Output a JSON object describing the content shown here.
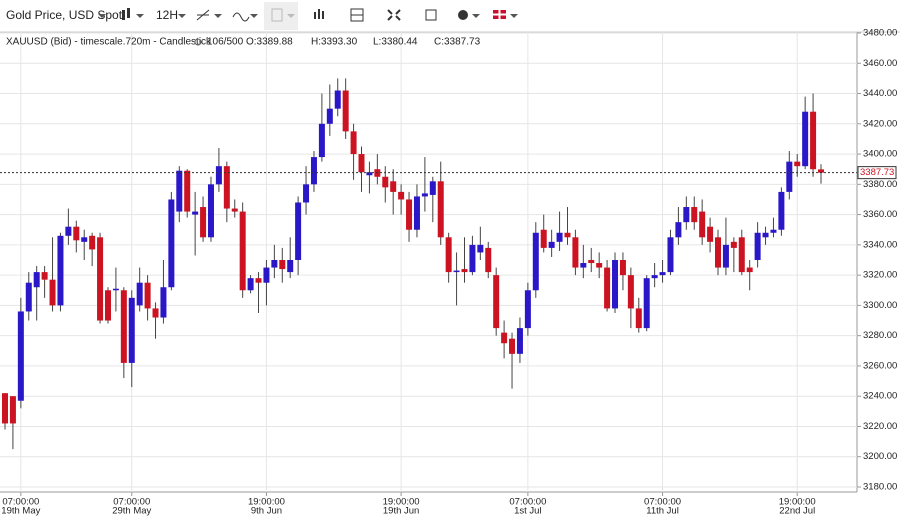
{
  "toolbar": {
    "instrument": "Gold Price, USD Spot",
    "interval": "12H"
  },
  "chart_data": {
    "type": "candlestick",
    "header": {
      "symbol": "XAUUSD (Bid) - timescale.720m - Candlestick",
      "count": "106/500",
      "open": "O:3389.88",
      "high": "H:3393.30",
      "low": "L:3380.44",
      "close": "C:3387.73"
    },
    "up_color": "#2a17c8",
    "down_color": "#cc1322",
    "categories": [
      null,
      null,
      {
        "time": "07:00:00",
        "date": "19th May"
      },
      null,
      null,
      null,
      null,
      null,
      null,
      null,
      null,
      null,
      null,
      null,
      null,
      null,
      {
        "time": "07:00:00",
        "date": "29th May"
      },
      null,
      null,
      null,
      null,
      null,
      null,
      null,
      null,
      null,
      null,
      null,
      null,
      null,
      null,
      null,
      null,
      {
        "time": "19:00:00",
        "date": "9th Jun"
      },
      null,
      null,
      null,
      null,
      null,
      null,
      null,
      null,
      null,
      null,
      null,
      null,
      null,
      null,
      null,
      null,
      {
        "time": "19:00:00",
        "date": "19th Jun"
      },
      null,
      null,
      null,
      null,
      null,
      null,
      null,
      null,
      null,
      null,
      null,
      null,
      null,
      null,
      null,
      {
        "time": "07:00:00",
        "date": "1st Jul"
      },
      null,
      null,
      null,
      null,
      null,
      null,
      null,
      null,
      null,
      null,
      null,
      null,
      null,
      null,
      null,
      null,
      {
        "time": "07:00:00",
        "date": "11th Jul"
      },
      null,
      null,
      null,
      null,
      null,
      null,
      null,
      null,
      null,
      null,
      null,
      null,
      null,
      null,
      null,
      null,
      {
        "time": "19:00:00",
        "date": "22nd Jul"
      },
      null,
      null,
      null
    ],
    "open": [
      3242,
      3240,
      3237,
      3296,
      3312,
      3322,
      3317,
      3300,
      3346,
      3352,
      3342,
      3346,
      3345,
      3310,
      3310,
      3310,
      3262,
      3300,
      3315,
      3298,
      3292,
      3312,
      3362,
      3389,
      3360,
      3365,
      3345,
      3380,
      3392,
      3364,
      3362,
      3310,
      3318,
      3315,
      3325,
      3330,
      3322,
      3330,
      3368,
      3380,
      3398,
      3420,
      3430,
      3442,
      3415,
      3400,
      3386,
      3390,
      3385,
      3382,
      3375,
      3370,
      3350,
      3372,
      3373,
      3382,
      3345,
      3322,
      3324,
      3322,
      3335,
      3338,
      3320,
      3282,
      3278,
      3268,
      3285,
      3310,
      3350,
      3338,
      3342,
      3348,
      3345,
      3325,
      3330,
      3328,
      3325,
      3298,
      3330,
      3320,
      3298,
      3285,
      3318,
      3320,
      3322,
      3345,
      3355,
      3365,
      3362,
      3352,
      3345,
      3325,
      3342,
      3345,
      3325,
      3330,
      3345,
      3348,
      3350,
      3375,
      3395,
      3392,
      3428,
      3389.88
    ],
    "high": [
      3242,
      3240,
      3305,
      3322,
      3326,
      3326,
      3345,
      3348,
      3364,
      3356,
      3350,
      3348,
      3348,
      3312,
      3325,
      3312,
      3310,
      3325,
      3320,
      3302,
      3330,
      3375,
      3392,
      3390,
      3375,
      3372,
      3385,
      3404,
      3395,
      3370,
      3368,
      3320,
      3322,
      3330,
      3340,
      3338,
      3345,
      3372,
      3392,
      3402,
      3440,
      3446,
      3450,
      3450,
      3420,
      3405,
      3395,
      3400,
      3392,
      3390,
      3380,
      3375,
      3380,
      3398,
      3385,
      3395,
      3348,
      3335,
      3345,
      3346,
      3352,
      3342,
      3325,
      3290,
      3282,
      3292,
      3315,
      3355,
      3360,
      3350,
      3362,
      3365,
      3350,
      3340,
      3338,
      3335,
      3330,
      3335,
      3335,
      3325,
      3305,
      3320,
      3328,
      3330,
      3350,
      3365,
      3372,
      3372,
      3370,
      3358,
      3350,
      3358,
      3345,
      3350,
      3330,
      3355,
      3352,
      3358,
      3378,
      3402,
      3400,
      3438,
      3440,
      3393.3
    ],
    "low": [
      3218,
      3205,
      3232,
      3290,
      3290,
      3305,
      3296,
      3296,
      3340,
      3335,
      3330,
      3326,
      3288,
      3288,
      3296,
      3252,
      3246,
      3296,
      3290,
      3278,
      3288,
      3310,
      3355,
      3358,
      3333,
      3342,
      3342,
      3375,
      3355,
      3358,
      3305,
      3308,
      3295,
      3300,
      3318,
      3315,
      3318,
      3320,
      3360,
      3375,
      3395,
      3412,
      3425,
      3410,
      3383,
      3375,
      3374,
      3380,
      3368,
      3360,
      3360,
      3342,
      3345,
      3362,
      3355,
      3340,
      3315,
      3300,
      3315,
      3320,
      3330,
      3318,
      3280,
      3265,
      3245,
      3262,
      3280,
      3305,
      3335,
      3332,
      3336,
      3340,
      3320,
      3318,
      3322,
      3318,
      3296,
      3295,
      3310,
      3285,
      3282,
      3283,
      3312,
      3315,
      3320,
      3340,
      3350,
      3350,
      3340,
      3335,
      3320,
      3320,
      3322,
      3320,
      3310,
      3325,
      3340,
      3345,
      3346,
      3370,
      3385,
      3390,
      3385,
      3380.44
    ],
    "close": [
      3222,
      3222,
      3296,
      3315,
      3322,
      3317,
      3300,
      3346,
      3352,
      3343,
      3345,
      3337,
      3290,
      3290,
      3311,
      3262,
      3305,
      3315,
      3298,
      3292,
      3312,
      3370,
      3389,
      3362,
      3362,
      3345,
      3380,
      3392,
      3364,
      3362,
      3310,
      3318,
      3315,
      3325,
      3330,
      3324,
      3330,
      3368,
      3380,
      3398,
      3420,
      3430,
      3442,
      3415,
      3400,
      3388,
      3388,
      3385,
      3378,
      3375,
      3370,
      3350,
      3372,
      3374,
      3382,
      3345,
      3322,
      3323,
      3322,
      3340,
      3340,
      3322,
      3285,
      3275,
      3268,
      3285,
      3310,
      3348,
      3338,
      3342,
      3348,
      3345,
      3325,
      3328,
      3328,
      3325,
      3298,
      3330,
      3320,
      3298,
      3285,
      3318,
      3320,
      3322,
      3345,
      3355,
      3365,
      3355,
      3345,
      3342,
      3325,
      3340,
      3338,
      3322,
      3322,
      3348,
      3348,
      3350,
      3375,
      3395,
      3392,
      3428,
      3390,
      3387.73
    ],
    "last_price": 3387.73,
    "ylim": [
      3180,
      3480
    ],
    "yticks": [
      {
        "value": 3180,
        "label": "3180.00"
      },
      {
        "value": 3200,
        "label": "3200.00"
      },
      {
        "value": 3220,
        "label": "3220.00"
      },
      {
        "value": 3240,
        "label": "3240.00"
      },
      {
        "value": 3260,
        "label": "3260.00"
      },
      {
        "value": 3280,
        "label": "3280.00"
      },
      {
        "value": 3300,
        "label": "3300.00"
      },
      {
        "value": 3320,
        "label": "3320.00"
      },
      {
        "value": 3340,
        "label": "3340.00"
      },
      {
        "value": 3360,
        "label": "3360.00"
      },
      {
        "value": 3380,
        "label": "3380.00"
      },
      {
        "value": 3400,
        "label": "3400.00"
      },
      {
        "value": 3420,
        "label": "3420.00"
      },
      {
        "value": 3440,
        "label": "3440.00"
      },
      {
        "value": 3460,
        "label": "3460.00"
      },
      {
        "value": 3480,
        "label": "3480.00"
      }
    ],
    "grid": true
  }
}
